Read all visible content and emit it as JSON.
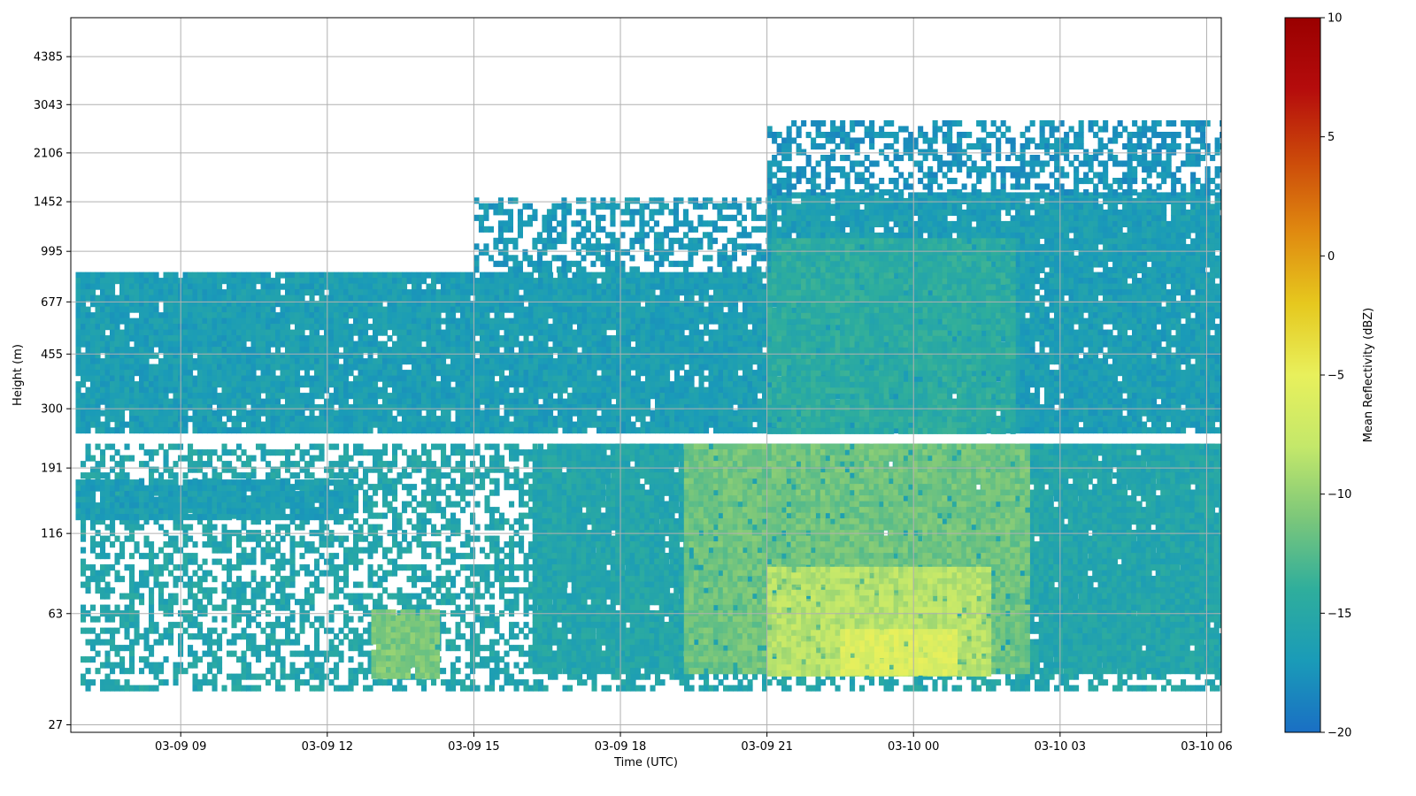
{
  "chart_data": {
    "type": "heatmap",
    "title": "",
    "xlabel": "Time (UTC)",
    "ylabel": "Height (m)",
    "x_tick_labels": [
      "03-09 09",
      "03-09 12",
      "03-09 15",
      "03-09 18",
      "03-09 21",
      "03-10 00",
      "03-10 03",
      "03-10 06"
    ],
    "x_ticks_hours": [
      9,
      12,
      15,
      18,
      21,
      24,
      27,
      30
    ],
    "xlim_hours": [
      6.75,
      30.3
    ],
    "y_scale": "log",
    "y_tick_labels": [
      "27",
      "63",
      "116",
      "191",
      "300",
      "455",
      "677",
      "995",
      "1452",
      "2106",
      "3043",
      "4385"
    ],
    "y_ticks": [
      27,
      63,
      116,
      191,
      300,
      455,
      677,
      995,
      1452,
      2106,
      3043,
      4385
    ],
    "grid": true,
    "colorbar": {
      "label": "Mean Reflectivity (dBZ)",
      "min": -20,
      "max": 10,
      "tick_labels": [
        "10",
        "5",
        "0",
        "−5",
        "−10",
        "−15",
        "−20"
      ],
      "ticks": [
        10,
        5,
        0,
        -5,
        -10,
        -15,
        -20
      ],
      "colormap": [
        "#1a6fc4",
        "#1a9bb8",
        "#2fae9c",
        "#7cc77a",
        "#c4e86a",
        "#e8f05c",
        "#e6c81e",
        "#e08a10",
        "#cc4a0a",
        "#b50c0c",
        "#9a0000"
      ]
    },
    "regions": [
      {
        "t0": 6.85,
        "t1": 30.4,
        "h0": 255,
        "h1": 850,
        "dbz": -16.5
      },
      {
        "t0": 21.0,
        "t1": 30.4,
        "h0": 850,
        "h1": 1560,
        "dbz": -16.5
      },
      {
        "t0": 21.0,
        "t1": 26.0,
        "h0": 255,
        "h1": 1100,
        "dbz": -14.5
      },
      {
        "t0": 21.0,
        "t1": 30.4,
        "h0": 1560,
        "h1": 2700,
        "dbz": -17.5,
        "sparse": true
      },
      {
        "t0": 15.0,
        "t1": 21.0,
        "h0": 850,
        "h1": 1500,
        "dbz": -17.0,
        "sparse": true
      },
      {
        "t0": 6.95,
        "t1": 30.4,
        "h0": 35,
        "h1": 230,
        "dbz": -15.5,
        "sparse": true
      },
      {
        "t0": 16.2,
        "t1": 30.4,
        "h0": 40,
        "h1": 230,
        "dbz": -15.5
      },
      {
        "t0": 19.3,
        "t1": 26.3,
        "h0": 40,
        "h1": 230,
        "dbz": -11.5
      },
      {
        "t0": 21.0,
        "t1": 25.5,
        "h0": 40,
        "h1": 90,
        "dbz": -8.5
      },
      {
        "t0": 22.5,
        "t1": 24.8,
        "h0": 40,
        "h1": 56,
        "dbz": -6.0
      },
      {
        "t0": 6.85,
        "t1": 12.5,
        "h0": 130,
        "h1": 175,
        "dbz": -16.5
      },
      {
        "t0": 12.9,
        "t1": 14.2,
        "h0": 40,
        "h1": 65,
        "dbz": -11.0
      }
    ]
  }
}
